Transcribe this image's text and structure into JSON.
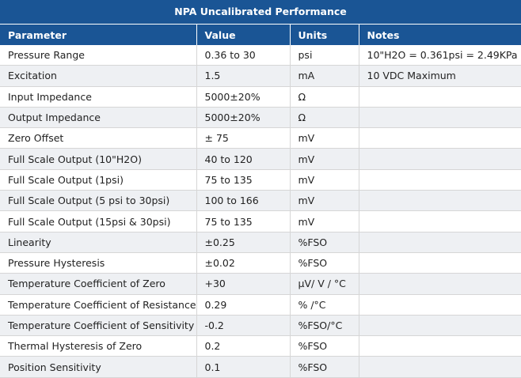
{
  "title": "NPA Uncalibrated Performance",
  "headers": [
    "Parameter",
    "Value",
    "Units",
    "Notes"
  ],
  "rows": [
    [
      "Pressure Range",
      "0.36 to 30",
      "psi",
      "10\"H2O = 0.361psi = 2.49KPa"
    ],
    [
      "Excitation",
      "1.5",
      "mA",
      "10 VDC Maximum"
    ],
    [
      "Input Impedance",
      "5000±20%",
      "Ω",
      ""
    ],
    [
      "Output Impedance",
      "5000±20%",
      "Ω",
      ""
    ],
    [
      "Zero Offset",
      "± 75",
      "mV",
      ""
    ],
    [
      "Full Scale Output  (10\"H2O)",
      "40 to 120",
      "mV",
      ""
    ],
    [
      "Full Scale Output  (1psi)",
      "75 to 135",
      "mV",
      ""
    ],
    [
      "Full Scale Output (5 psi to 30psi)",
      "100 to 166",
      "mV",
      ""
    ],
    [
      "Full Scale Output (15psi & 30psi)",
      "75 to 135",
      "mV",
      ""
    ],
    [
      "Linearity",
      "±0.25",
      "%FSO",
      ""
    ],
    [
      "Pressure Hysteresis",
      "±0.02",
      "%FSO",
      ""
    ],
    [
      "Temperature Coefficient of Zero",
      "+30",
      "µV/ V / °C",
      ""
    ],
    [
      "Temperature Coefficient of Resistance",
      "0.29",
      "% /°C",
      ""
    ],
    [
      "Temperature Coefficient of Sensitivity",
      "-0.2",
      "%FSO/°C",
      ""
    ],
    [
      "Thermal Hysteresis of Zero",
      "0.2",
      "%FSO",
      ""
    ],
    [
      "Position Sensitivity",
      "0.1",
      "%FSO",
      ""
    ]
  ]
}
